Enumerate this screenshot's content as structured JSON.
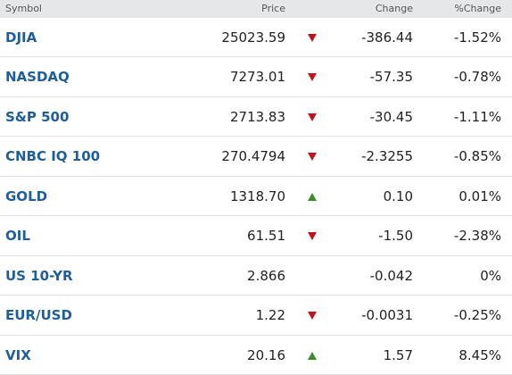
{
  "table": {
    "header": [
      "Symbol",
      "Price",
      "Change",
      "%Change"
    ],
    "rows": [
      {
        "symbol": "DJIA",
        "price": "25023.59",
        "trend": "down",
        "change": "-386.44",
        "pct": "-1.52%"
      },
      {
        "symbol": "NASDAQ",
        "price": "7273.01",
        "trend": "down",
        "change": "-57.35",
        "pct": "-0.78%"
      },
      {
        "symbol": "S&P 500",
        "price": "2713.83",
        "trend": "down",
        "change": "-30.45",
        "pct": "-1.11%"
      },
      {
        "symbol": "CNBC IQ 100",
        "price": "270.4794",
        "trend": "down",
        "change": "-2.3255",
        "pct": "-0.85%"
      },
      {
        "symbol": "GOLD",
        "price": "1318.70",
        "trend": "up",
        "change": "0.10",
        "pct": "0.01%"
      },
      {
        "symbol": "OIL",
        "price": "61.51",
        "trend": "down",
        "change": "-1.50",
        "pct": "-2.38%"
      },
      {
        "symbol": "US 10-YR",
        "price": "2.866",
        "change": "-0.042",
        "pct": "0%"
      },
      {
        "symbol": "EUR/USD",
        "price": "1.22",
        "trend": "down",
        "change": "-0.0031",
        "pct": "-0.25%"
      },
      {
        "symbol": "VIX",
        "price": "20.16",
        "trend": "up",
        "change": "1.57",
        "pct": "8.45%"
      }
    ]
  }
}
